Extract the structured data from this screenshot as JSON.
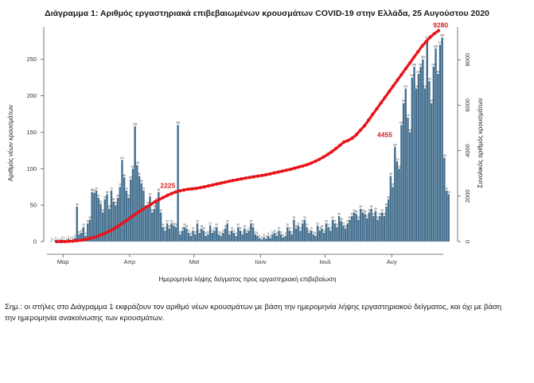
{
  "chart_data": {
    "type": "bar+line",
    "title": "Διάγραμμα 1: Αριθμός εργαστηριακά επιβεβαιωμένων κρουσμάτων COVID-19 στην Ελλάδα, 25 Αυγούστου 2020",
    "xlabel": "Ημερομηνία λήψης δείγματος προς εργαστηριακή επιβεβαίωση",
    "ylabel_left": "Αριθμός νέων κρουσμάτων",
    "ylabel_right": "Συνολικός αριθμός κρουσμάτων",
    "ylim_left": [
      0,
      290
    ],
    "ylim_right": [
      0,
      9300
    ],
    "yticks_left": [
      0,
      50,
      100,
      150,
      200,
      250
    ],
    "yticks_right": [
      "0",
      "2000",
      "4000",
      "6000",
      "8000"
    ],
    "yticks_right_values": [
      0,
      2000,
      4000,
      6000,
      8000
    ],
    "x_start": "2020-02-24",
    "x_end": "2020-08-24",
    "month_ticks": [
      {
        "label": "Μαρ",
        "date": "2020-03-01"
      },
      {
        "label": "Απρ",
        "date": "2020-04-01"
      },
      {
        "label": "Μαϊ",
        "date": "2020-05-01"
      },
      {
        "label": "Ιουν",
        "date": "2020-06-01"
      },
      {
        "label": "Ιουλ",
        "date": "2020-07-01"
      },
      {
        "label": "Αυγ",
        "date": "2020-08-01"
      }
    ],
    "series": [
      {
        "name": "Αριθμός νέων κρουσμάτων",
        "kind": "bar",
        "color": "#45708f",
        "values": [
          1,
          0,
          2,
          0,
          1,
          3,
          2,
          1,
          4,
          2,
          3,
          5,
          48,
          10,
          12,
          20,
          8,
          25,
          30,
          68,
          67,
          70,
          60,
          52,
          40,
          58,
          65,
          45,
          70,
          55,
          50,
          60,
          75,
          112,
          88,
          70,
          60,
          85,
          100,
          158,
          105,
          90,
          80,
          70,
          45,
          50,
          62,
          40,
          45,
          55,
          68,
          40,
          20,
          15,
          25,
          18,
          25,
          22,
          20,
          160,
          10,
          15,
          20,
          18,
          12,
          8,
          15,
          10,
          25,
          12,
          18,
          15,
          8,
          10,
          22,
          12,
          15,
          20,
          10,
          8,
          12,
          18,
          25,
          10,
          15,
          12,
          8,
          20,
          15,
          10,
          18,
          12,
          15,
          25,
          20,
          10,
          8,
          5,
          3,
          6,
          4,
          8,
          5,
          10,
          12,
          8,
          15,
          10,
          6,
          8,
          20,
          15,
          10,
          30,
          18,
          22,
          15,
          25,
          30,
          20,
          12,
          15,
          10,
          8,
          22,
          15,
          18,
          12,
          25,
          20,
          15,
          30,
          25,
          20,
          35,
          28,
          22,
          18,
          25,
          30,
          35,
          40,
          38,
          30,
          45,
          40,
          38,
          32,
          40,
          45,
          35,
          42,
          30,
          35,
          40,
          35,
          48,
          58,
          90,
          75,
          130,
          110,
          100,
          160,
          190,
          210,
          170,
          150,
          225,
          240,
          210,
          230,
          240,
          250,
          210,
          277,
          220,
          190,
          240,
          265,
          230,
          270,
          280,
          115,
          70,
          65
        ]
      },
      {
        "name": "Συνολικός αριθμός κρουσμάτων",
        "kind": "line",
        "color": "#e8141a",
        "values": [
          0,
          0,
          0,
          10,
          20,
          40,
          60,
          90,
          130,
          180,
          230,
          300,
          380,
          470,
          570,
          680,
          800,
          920,
          1050,
          1180,
          1300,
          1420,
          1530,
          1640,
          1750,
          1850,
          1940,
          2030,
          2110,
          2180,
          2230,
          2270,
          2300,
          2320,
          2340,
          2370,
          2410,
          2450,
          2490,
          2530,
          2570,
          2610,
          2650,
          2690,
          2720,
          2760,
          2790,
          2820,
          2850,
          2880,
          2910,
          2940,
          2980,
          3020,
          3060,
          3100,
          3140,
          3180,
          3230,
          3280,
          3330,
          3380,
          3450,
          3530,
          3620,
          3720,
          3830,
          3950,
          4090,
          4230,
          4380,
          4450,
          4550,
          4700,
          4900,
          5100,
          5350,
          5600,
          5850,
          6100,
          6350,
          6600,
          6850,
          7100,
          7350,
          7600,
          7850,
          8100,
          8350,
          8600,
          8800,
          9000,
          9150,
          9280
        ]
      }
    ],
    "annotations": [
      {
        "text": "2225",
        "date": "2020-04-19",
        "value": 2225
      },
      {
        "text": "4455",
        "date": "2020-07-29",
        "value": 4455
      },
      {
        "text": "9280",
        "date": "2020-08-24",
        "value": 9280
      }
    ],
    "bar_labels": [
      "1",
      "2",
      "3",
      "4",
      "5",
      "8",
      "10",
      "12",
      "14",
      "18",
      "20",
      "25",
      "30",
      "48",
      "55",
      "60",
      "68",
      "70",
      "85",
      "100",
      "112",
      "158",
      "160",
      "210",
      "225",
      "240",
      "250",
      "277",
      "280"
    ]
  },
  "footnote": "Σημ.: οι στήλες στο Διάγραμμα 1 εκφράζουν τον αριθμό νέων κρουσμάτων με βάση την ημερομηνία λήψης εργαστηριακού δείγματος, και όχι με βάση την ημερομηνία ανακοίνωσης των κρουσμάτων."
}
